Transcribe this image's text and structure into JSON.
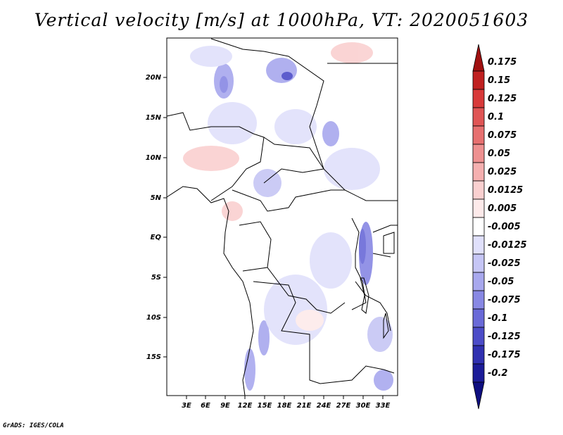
{
  "title": "Vertical velocity [m/s] at 1000hPa, VT: 2020051603",
  "credit": "GrADS: IGES/COLA",
  "map": {
    "lat_ticks": [
      "20N",
      "15N",
      "10N",
      "5N",
      "EQ",
      "5S",
      "10S",
      "15S"
    ],
    "lon_ticks": [
      "3E",
      "6E",
      "9E",
      "12E",
      "15E",
      "18E",
      "21E",
      "24E",
      "27E",
      "30E",
      "33E"
    ]
  },
  "colorbar": {
    "levels": [
      "0.175",
      "0.15",
      "0.125",
      "0.1",
      "0.075",
      "0.05",
      "0.025",
      "0.0125",
      "0.005",
      "-0.005",
      "-0.0125",
      "-0.025",
      "-0.05",
      "-0.075",
      "-0.1",
      "-0.125",
      "-0.175",
      "-0.2"
    ],
    "colors": [
      "#a01010",
      "#c02020",
      "#d83a3a",
      "#e05555",
      "#e77070",
      "#ee9090",
      "#f5b0b0",
      "#fad0d0",
      "#fdeaea",
      "#ffffff",
      "#e0e0fb",
      "#c6c6f5",
      "#a8a8ee",
      "#8888e4",
      "#6a6ad8",
      "#4c4cc8",
      "#3030b0",
      "#1c1c98",
      "#0e0e80"
    ]
  }
}
